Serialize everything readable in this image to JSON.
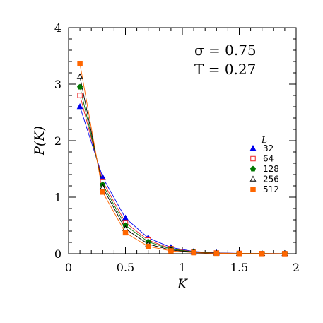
{
  "chart_data": {
    "type": "line",
    "xlabel": "K",
    "ylabel": "P(K)",
    "xlim": [
      0,
      2
    ],
    "ylim": [
      0,
      4
    ],
    "xticks": [
      0,
      0.5,
      1,
      1.5,
      2
    ],
    "xtick_labels": [
      "0",
      "0.5",
      "1",
      "1.5",
      "2"
    ],
    "yticks": [
      0,
      1,
      2,
      3,
      4
    ],
    "ytick_labels": [
      "0",
      "1",
      "2",
      "3",
      "4"
    ],
    "grid": false,
    "annotations": [
      "σ  =  0.75",
      "T  =  0.27"
    ],
    "legend": {
      "title": "L",
      "placement": "right"
    },
    "x": [
      0.1,
      0.3,
      0.5,
      0.7,
      0.9,
      1.1,
      1.3,
      1.5,
      1.7,
      1.9
    ],
    "series": [
      {
        "name": "32",
        "color": "#0000ee",
        "marker": "triangle-filled",
        "values": [
          2.6,
          1.35,
          0.63,
          0.28,
          0.11,
          0.04,
          0.015,
          0.007,
          0.004,
          0.002
        ]
      },
      {
        "name": "64",
        "color": "#ee2222",
        "marker": "square-open",
        "values": [
          2.8,
          1.28,
          0.55,
          0.24,
          0.09,
          0.035,
          0.012,
          0.006,
          0.003,
          0.002
        ]
      },
      {
        "name": "128",
        "color": "#007700",
        "marker": "pentagon-filled",
        "values": [
          2.95,
          1.22,
          0.5,
          0.21,
          0.08,
          0.03,
          0.01,
          0.005,
          0.003,
          0.002
        ]
      },
      {
        "name": "256",
        "color": "#000000",
        "marker": "triangle-open",
        "values": [
          3.13,
          1.17,
          0.44,
          0.17,
          0.065,
          0.025,
          0.009,
          0.004,
          0.002,
          0.001
        ]
      },
      {
        "name": "512",
        "color": "#ff6600",
        "marker": "square-filled",
        "values": [
          3.36,
          1.09,
          0.37,
          0.13,
          0.05,
          0.018,
          0.007,
          0.003,
          0.002,
          0.001
        ]
      }
    ]
  }
}
